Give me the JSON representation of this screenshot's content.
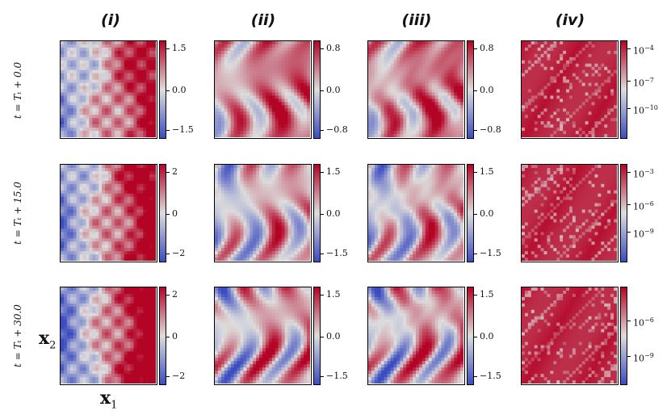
{
  "chart_data": {
    "type": "heatmap",
    "column_titles": [
      "(i)",
      "(ii)",
      "(iii)",
      "(iv)"
    ],
    "row_labels": [
      "t = T_t + 0.0",
      "t = T_t + 15.0",
      "t = T_t + 30.0"
    ],
    "row_labels_display": [
      "t = Tₜ + 0.0",
      "t = Tₜ + 15.0",
      "t = Tₜ + 30.0"
    ],
    "xlabel": "x",
    "xlabel_sub": "1",
    "ylabel": "x",
    "ylabel_sub": "2",
    "colormap": "coolwarm",
    "colors": {
      "low": "#3b4cc0",
      "mid": "#dddddd",
      "high": "#b40426"
    },
    "colorbars": [
      [
        {
          "scale": "linear",
          "ticks": [
            "1.5",
            "0.0",
            "−1.5"
          ]
        },
        {
          "scale": "linear",
          "ticks": [
            "0.8",
            "0.0",
            "−0.8"
          ]
        },
        {
          "scale": "linear",
          "ticks": [
            "0.8",
            "0.0",
            "−0.8"
          ]
        },
        {
          "scale": "log",
          "ticks": [
            [
              "10",
              "−4"
            ],
            [
              "10",
              "−7"
            ],
            [
              "10",
              "−10"
            ]
          ]
        }
      ],
      [
        {
          "scale": "linear",
          "ticks": [
            "2",
            "0",
            "−2"
          ]
        },
        {
          "scale": "linear",
          "ticks": [
            "1.5",
            "0.0",
            "−1.5"
          ]
        },
        {
          "scale": "linear",
          "ticks": [
            "1.5",
            "0.0",
            "−1.5"
          ]
        },
        {
          "scale": "log",
          "ticks": [
            [
              "10",
              "−3"
            ],
            [
              "10",
              "−6"
            ],
            [
              "10",
              "−9"
            ]
          ]
        }
      ],
      [
        {
          "scale": "linear",
          "ticks": [
            "2",
            "0",
            "−2"
          ]
        },
        {
          "scale": "linear",
          "ticks": [
            "1.5",
            "0.0",
            "−1.5"
          ]
        },
        {
          "scale": "linear",
          "ticks": [
            "1.5",
            "0.0",
            "−1.5"
          ]
        },
        {
          "scale": "log",
          "ticks": [
            [
              "10",
              "−6"
            ],
            [
              "10",
              "−9"
            ]
          ]
        }
      ]
    ]
  }
}
